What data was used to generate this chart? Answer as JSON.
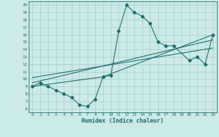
{
  "xlabel": "Humidex (Indice chaleur)",
  "xlim": [
    -0.5,
    23.5
  ],
  "ylim": [
    5.5,
    20.5
  ],
  "xticks": [
    0,
    1,
    2,
    3,
    4,
    5,
    6,
    7,
    8,
    9,
    10,
    11,
    12,
    13,
    14,
    15,
    16,
    17,
    18,
    19,
    20,
    21,
    22,
    23
  ],
  "yticks": [
    6,
    7,
    8,
    9,
    10,
    11,
    12,
    13,
    14,
    15,
    16,
    17,
    18,
    19,
    20
  ],
  "bg_color": "#cceae8",
  "grid_color": "#9ecece",
  "line_color": "#1a6b6b",
  "curve1_x": [
    0,
    1,
    2,
    3,
    4,
    5,
    6,
    7,
    8,
    9,
    10,
    11,
    12,
    13,
    14,
    15,
    16,
    17,
    18,
    20,
    21,
    22,
    23
  ],
  "curve1_y": [
    9.0,
    9.5,
    9.0,
    8.5,
    8.0,
    7.5,
    6.5,
    6.3,
    7.3,
    10.3,
    10.5,
    16.5,
    20.0,
    19.0,
    18.5,
    17.5,
    15.0,
    14.5,
    14.5,
    12.5,
    13.0,
    12.0,
    16.0
  ],
  "line1_x": [
    0,
    23
  ],
  "line1_y": [
    9.5,
    15.3
  ],
  "line2_x": [
    0,
    23
  ],
  "line2_y": [
    10.2,
    14.2
  ],
  "line3_x": [
    0,
    9,
    23
  ],
  "line3_y": [
    9.0,
    10.3,
    16.0
  ]
}
